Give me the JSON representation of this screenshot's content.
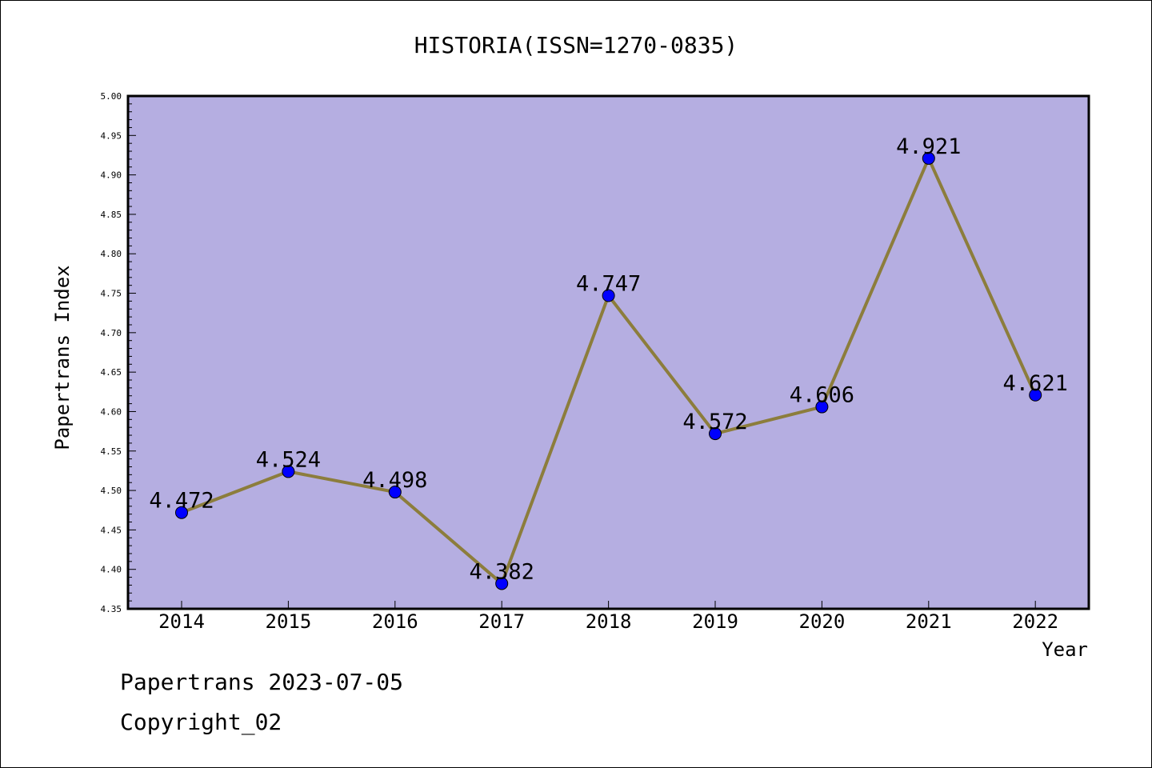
{
  "chart_data": {
    "type": "line",
    "title": "HISTORIA(ISSN=1270-0835)",
    "xlabel": "Year",
    "ylabel": "Papertrans Index",
    "categories": [
      "2014",
      "2015",
      "2016",
      "2017",
      "2018",
      "2019",
      "2020",
      "2021",
      "2022"
    ],
    "series": [
      {
        "values": [
          4.472,
          4.524,
          4.498,
          4.382,
          4.747,
          4.572,
          4.606,
          4.921,
          4.621
        ]
      }
    ],
    "data_labels": [
      "4.472",
      "4.524",
      "4.498",
      "4.382",
      "4.747",
      "4.572",
      "4.606",
      "4.921",
      "4.621"
    ],
    "ylim": [
      4.35,
      5.0
    ],
    "yticks": [
      "4.35",
      "4.40",
      "4.45",
      "4.50",
      "4.55",
      "4.60",
      "4.65",
      "4.70",
      "4.75",
      "4.80",
      "4.85",
      "4.90",
      "4.95",
      "5.00"
    ],
    "grid": false,
    "legend": "none",
    "colors": {
      "plot_background": "#b5aee1",
      "line": "#8c7d3c",
      "marker": "#0000ff"
    }
  },
  "footer": {
    "line1": "Papertrans 2023-07-05",
    "line2": "Copyright_02"
  }
}
